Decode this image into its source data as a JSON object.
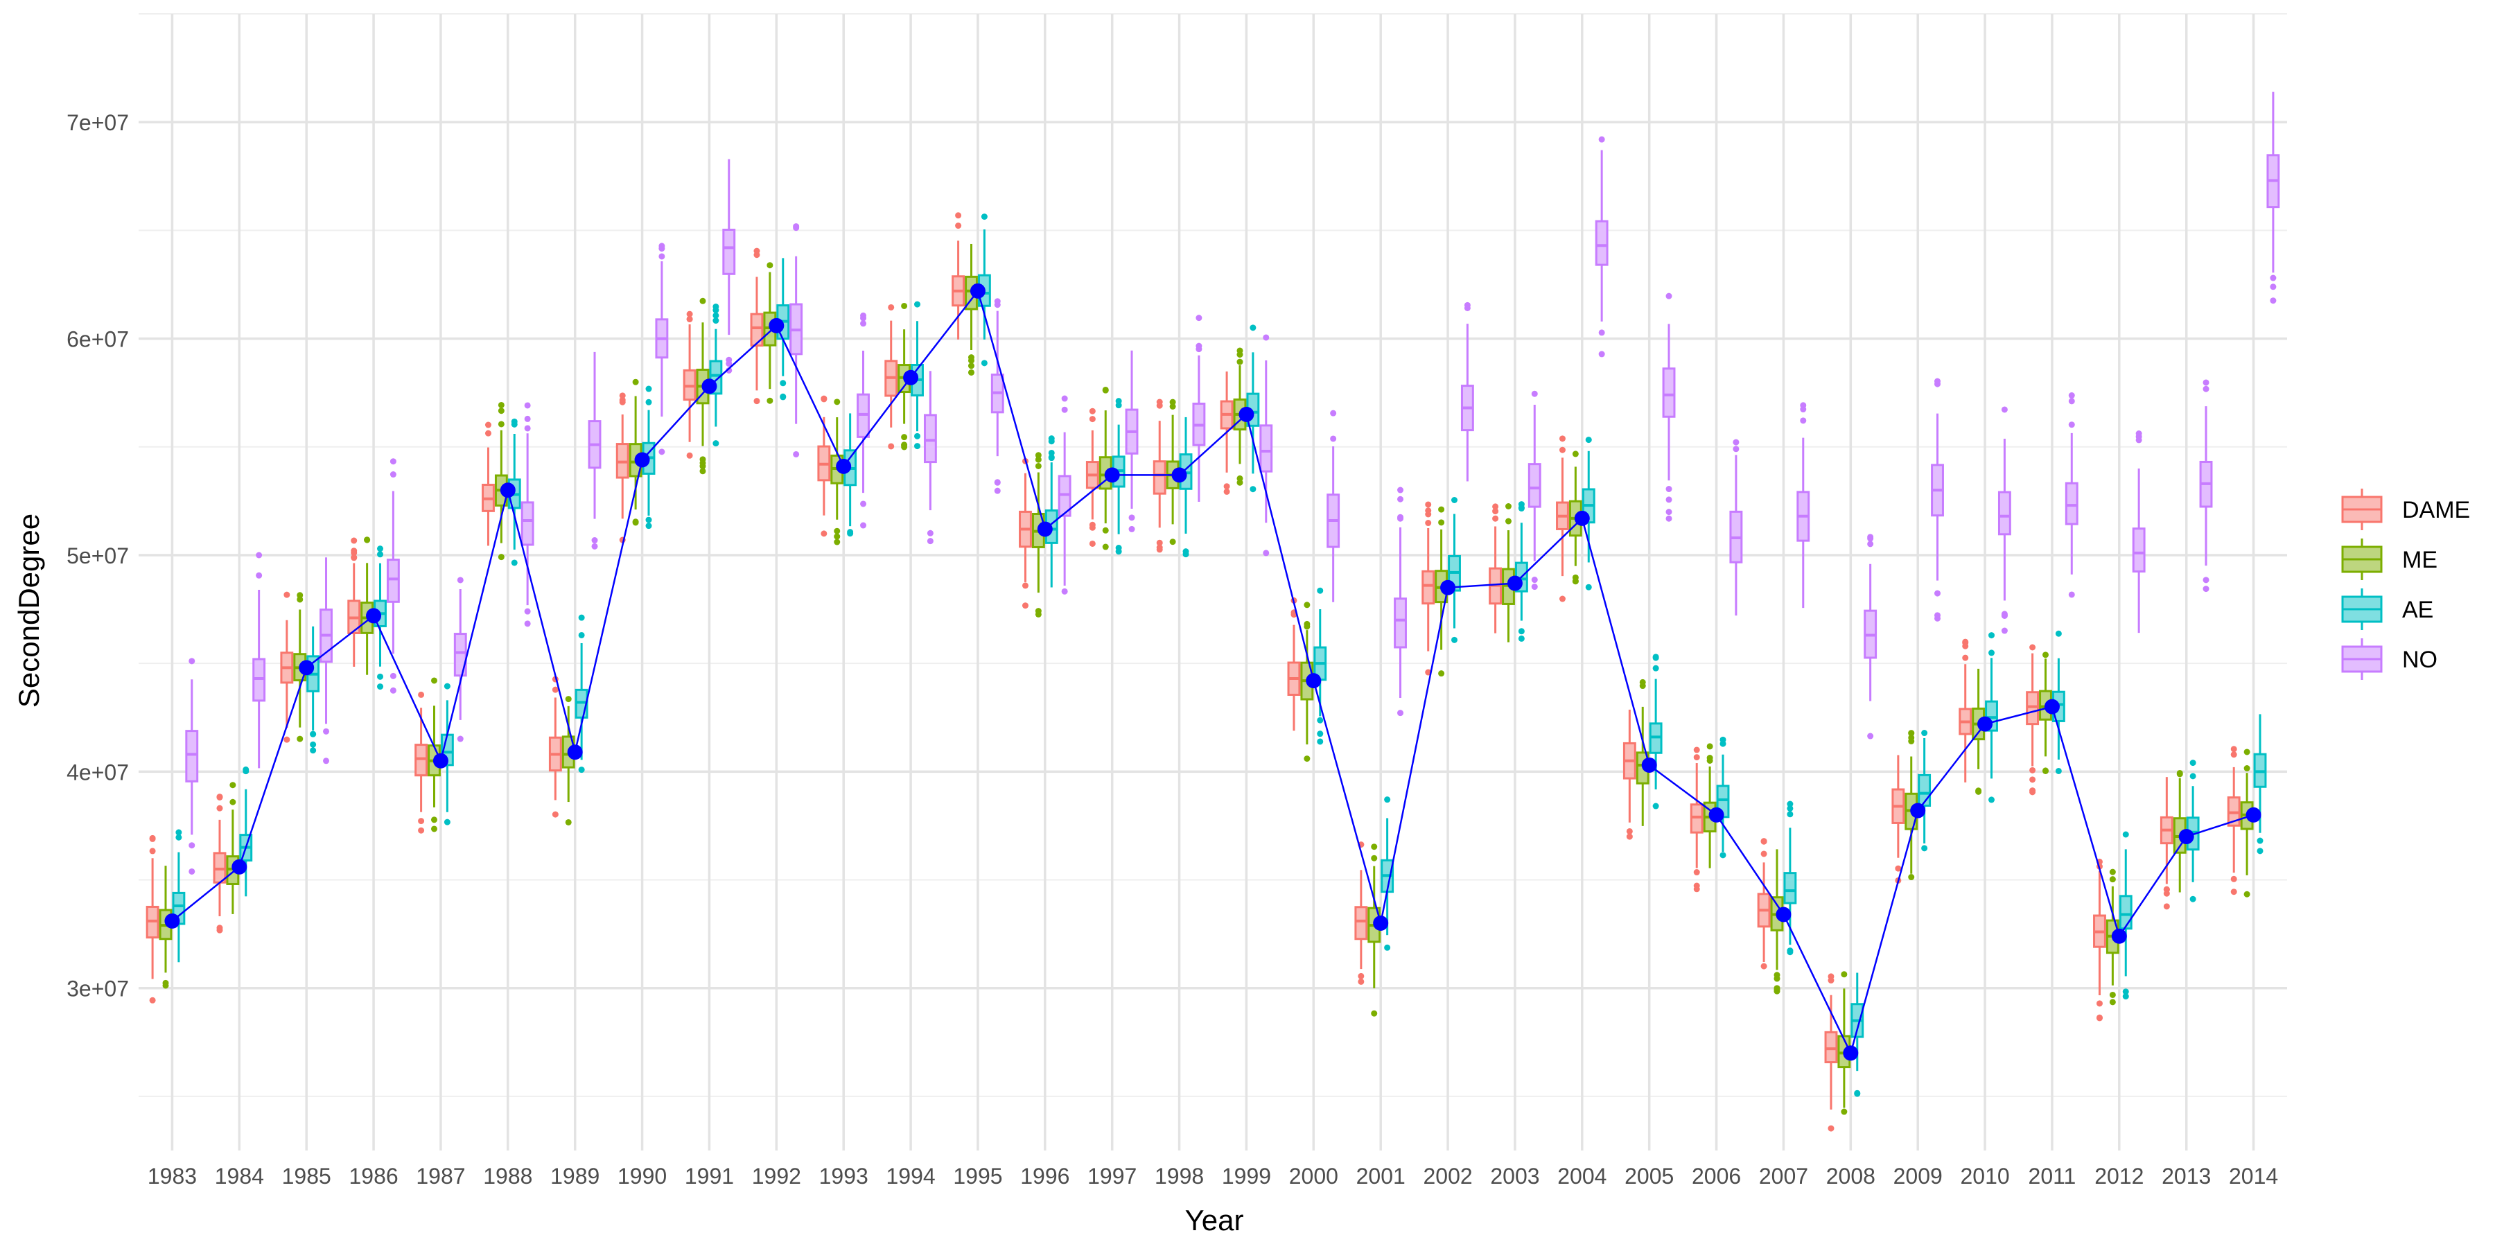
{
  "chart_data": {
    "type": "box",
    "title": "",
    "xlabel": "Year",
    "ylabel": "SecondDegree",
    "categories": [
      "1983",
      "1984",
      "1985",
      "1986",
      "1987",
      "1988",
      "1989",
      "1990",
      "1991",
      "1992",
      "1993",
      "1994",
      "1995",
      "1996",
      "1997",
      "1998",
      "1999",
      "2000",
      "2001",
      "2002",
      "2003",
      "2004",
      "2005",
      "2006",
      "2007",
      "2008",
      "2009",
      "2010",
      "2011",
      "2012",
      "2013",
      "2014"
    ],
    "y_ticks": [
      30000000,
      40000000,
      50000000,
      60000000,
      70000000
    ],
    "y_tick_labels": [
      "3e+07",
      "4e+07",
      "5e+07",
      "6e+07",
      "7e+07"
    ],
    "ylim": [
      22500000,
      75000000
    ],
    "grid": true,
    "legend_position": "right",
    "series": [
      {
        "name": "DAME",
        "color": "#F8766D",
        "fill": "#FBBAB6",
        "medians": [
          33.1,
          35.5,
          44.8,
          47.1,
          40.6,
          52.6,
          40.8,
          54.3,
          57.8,
          60.5,
          54.2,
          58.2,
          62.2,
          51.2,
          53.7,
          53.7,
          56.5,
          44.3,
          33.1,
          48.6,
          48.6,
          51.8,
          40.5,
          37.9,
          33.6,
          27.2,
          38.4,
          42.3,
          43.0,
          32.6,
          37.3,
          38.1
        ]
      },
      {
        "name": "ME",
        "color": "#7CAE00",
        "fill": "#BDD67F",
        "medians": [
          32.9,
          35.5,
          44.8,
          47.1,
          40.5,
          53.0,
          40.8,
          54.3,
          57.8,
          60.5,
          54.0,
          58.2,
          62.2,
          51.1,
          53.7,
          53.7,
          56.5,
          44.2,
          32.9,
          48.5,
          48.6,
          51.7,
          40.3,
          37.9,
          33.4,
          27.0,
          38.2,
          42.2,
          43.0,
          32.4,
          37.0,
          38.0
        ]
      },
      {
        "name": "AE",
        "color": "#00BFC4",
        "fill": "#7FDFE1",
        "medians": [
          33.8,
          36.5,
          44.5,
          47.3,
          40.9,
          52.8,
          43.2,
          54.5,
          58.3,
          60.8,
          54.0,
          58.1,
          62.1,
          51.2,
          53.9,
          53.8,
          56.6,
          45.0,
          35.2,
          49.2,
          48.9,
          52.3,
          41.6,
          38.7,
          34.5,
          28.5,
          39.0,
          42.5,
          43.1,
          33.4,
          37.2,
          40.0
        ]
      },
      {
        "name": "NO",
        "color": "#C77CFF",
        "fill": "#E3BDFF",
        "medians": [
          40.8,
          44.3,
          46.3,
          48.9,
          45.5,
          51.6,
          55.1,
          60.0,
          64.2,
          60.4,
          56.5,
          55.3,
          57.5,
          52.8,
          55.7,
          56.0,
          54.8,
          51.6,
          47.0,
          56.8,
          53.1,
          64.3,
          57.4,
          50.8,
          51.8,
          46.3,
          53.0,
          51.8,
          52.3,
          50.1,
          53.3,
          67.3
        ]
      }
    ],
    "mean_line": {
      "color": "#0000FF",
      "values": [
        33.1,
        35.6,
        44.8,
        47.2,
        40.5,
        53.0,
        40.9,
        54.4,
        57.8,
        60.6,
        54.1,
        58.2,
        62.2,
        51.2,
        53.7,
        53.7,
        56.5,
        44.2,
        33.0,
        48.5,
        48.7,
        51.7,
        40.3,
        38.0,
        33.4,
        27.0,
        38.2,
        42.2,
        43.0,
        32.4,
        37.0,
        38.0
      ]
    },
    "value_units": "millions"
  }
}
